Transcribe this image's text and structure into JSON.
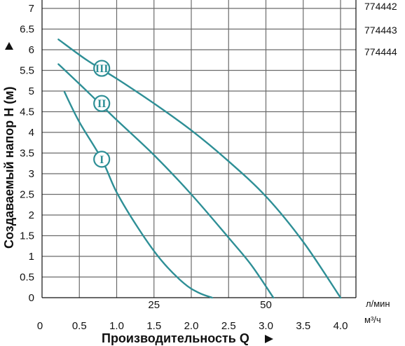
{
  "chart_data": {
    "type": "line",
    "title": "",
    "xlabel": "Производительность Q",
    "ylabel": "Создаваемый напор Н (м)",
    "xlim": [
      0,
      4.2
    ],
    "ylim": [
      0,
      7.2
    ],
    "x_ticks": [
      "0",
      "0.5",
      "1.0",
      "1.5",
      "2.0",
      "2.5",
      "3.0",
      "3.5",
      "4.0"
    ],
    "y_ticks": [
      "0",
      "0.5",
      "1",
      "1.5",
      "2",
      "2.5",
      "3",
      "3.5",
      "4",
      "4.5",
      "5",
      "5.5",
      "6",
      "6.5",
      "7"
    ],
    "x_ticks_lmin": [
      "25",
      "50"
    ],
    "units": {
      "lmin": "л/мин",
      "m3h": "м³/ч"
    },
    "grid": true,
    "accent_color": "#2e8f96",
    "series": [
      {
        "name": "I",
        "x": [
          0.3,
          0.5,
          0.8,
          1.0,
          1.3,
          1.6,
          1.9,
          2.1,
          2.28
        ],
        "y": [
          4.98,
          4.25,
          3.35,
          2.55,
          1.65,
          0.9,
          0.35,
          0.12,
          0.0
        ]
      },
      {
        "name": "II",
        "x": [
          0.22,
          0.6,
          1.0,
          1.5,
          2.0,
          2.5,
          2.8,
          3.1
        ],
        "y": [
          5.65,
          5.0,
          4.3,
          3.45,
          2.5,
          1.45,
          0.8,
          0.0
        ]
      },
      {
        "name": "III",
        "x": [
          0.22,
          0.6,
          1.0,
          1.5,
          2.0,
          2.5,
          3.0,
          3.5,
          4.0
        ],
        "y": [
          6.25,
          5.75,
          5.3,
          4.7,
          4.05,
          3.3,
          2.45,
          1.35,
          0.0
        ]
      }
    ],
    "legend": {
      "placement": "right",
      "models": [
        "774442",
        "774443",
        "774444"
      ]
    }
  }
}
